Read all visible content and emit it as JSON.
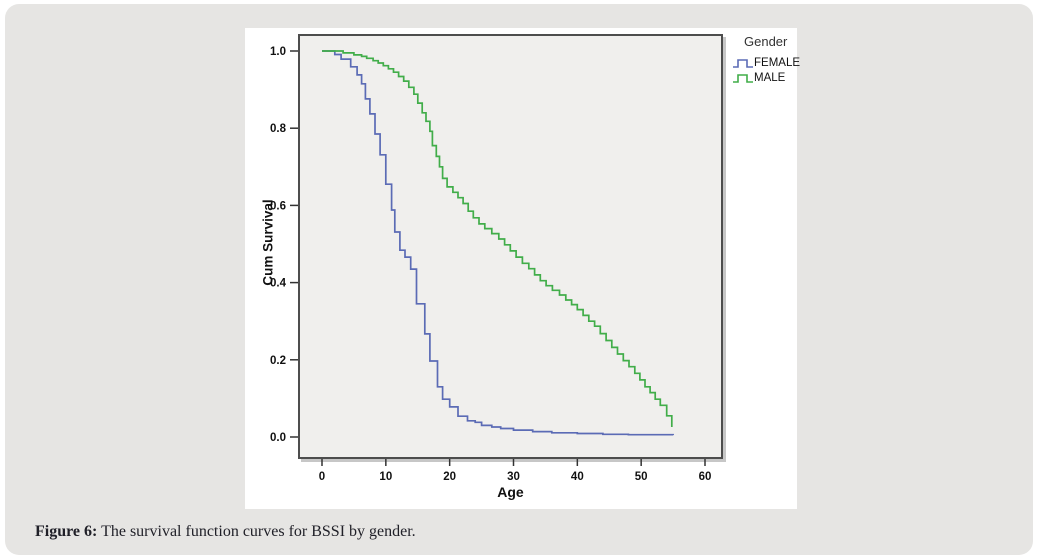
{
  "caption": {
    "prefix": "Figure 6:",
    "text": " The survival function curves for BSSI by gender."
  },
  "chart_data": {
    "type": "line",
    "subtype": "step-survival",
    "title": "",
    "xlabel": "Age",
    "ylabel": "Cum Survival",
    "xlim": [
      0,
      60
    ],
    "ylim": [
      0.0,
      1.0
    ],
    "grid": false,
    "plot_background": "#f0efed",
    "frame_color": "#4d4d4d",
    "x_tick_values": [
      0,
      10,
      20,
      30,
      40,
      50,
      60
    ],
    "x_tick_labels": [
      "0",
      "10",
      "20",
      "30",
      "40",
      "50",
      "60"
    ],
    "y_tick_values": [
      0.0,
      0.2,
      0.4,
      0.6,
      0.8,
      1.0
    ],
    "y_tick_labels": [
      "0.0",
      "0.2",
      "0.4",
      "0.6",
      "0.8",
      "1.0"
    ],
    "legend": {
      "title": "Gender",
      "position": "outside-top-right"
    },
    "series": [
      {
        "name": "FEMALE",
        "color": "#5b6bb5",
        "points": [
          [
            0,
            1.0
          ],
          [
            2,
            0.991
          ],
          [
            3,
            0.979
          ],
          [
            4.5,
            0.959
          ],
          [
            5.5,
            0.938
          ],
          [
            6.2,
            0.915
          ],
          [
            6.8,
            0.876
          ],
          [
            7.5,
            0.837
          ],
          [
            8.3,
            0.785
          ],
          [
            9.1,
            0.731
          ],
          [
            10,
            0.655
          ],
          [
            10.9,
            0.588
          ],
          [
            11.4,
            0.531
          ],
          [
            12.2,
            0.484
          ],
          [
            13,
            0.466
          ],
          [
            13.9,
            0.435
          ],
          [
            14.8,
            0.345
          ],
          [
            16.1,
            0.267
          ],
          [
            16.9,
            0.197
          ],
          [
            18.1,
            0.13
          ],
          [
            18.9,
            0.098
          ],
          [
            20,
            0.078
          ],
          [
            21.3,
            0.054
          ],
          [
            22.8,
            0.042
          ],
          [
            24,
            0.038
          ],
          [
            25,
            0.03
          ],
          [
            26.6,
            0.026
          ],
          [
            28,
            0.022
          ],
          [
            30,
            0.018
          ],
          [
            33,
            0.014
          ],
          [
            36,
            0.011
          ],
          [
            40,
            0.009
          ],
          [
            44,
            0.007
          ],
          [
            48,
            0.006
          ],
          [
            55,
            0.005
          ]
        ]
      },
      {
        "name": "MALE",
        "color": "#41ad49",
        "points": [
          [
            0,
            1.0
          ],
          [
            3.3,
            0.995
          ],
          [
            5,
            0.99
          ],
          [
            6.2,
            0.986
          ],
          [
            7,
            0.981
          ],
          [
            8,
            0.975
          ],
          [
            8.8,
            0.969
          ],
          [
            9.6,
            0.962
          ],
          [
            10.4,
            0.954
          ],
          [
            11.2,
            0.945
          ],
          [
            12,
            0.934
          ],
          [
            12.8,
            0.922
          ],
          [
            13.6,
            0.906
          ],
          [
            14.4,
            0.888
          ],
          [
            15,
            0.865
          ],
          [
            15.7,
            0.84
          ],
          [
            16.3,
            0.818
          ],
          [
            16.9,
            0.792
          ],
          [
            17.3,
            0.755
          ],
          [
            17.9,
            0.727
          ],
          [
            18.4,
            0.7
          ],
          [
            18.9,
            0.67
          ],
          [
            19.6,
            0.648
          ],
          [
            20.5,
            0.634
          ],
          [
            21.3,
            0.62
          ],
          [
            22.1,
            0.605
          ],
          [
            22.9,
            0.585
          ],
          [
            23.7,
            0.568
          ],
          [
            24.6,
            0.552
          ],
          [
            25.5,
            0.54
          ],
          [
            26.6,
            0.527
          ],
          [
            27.7,
            0.513
          ],
          [
            28.6,
            0.498
          ],
          [
            29.5,
            0.482
          ],
          [
            30.4,
            0.466
          ],
          [
            31.4,
            0.45
          ],
          [
            32.4,
            0.436
          ],
          [
            33.3,
            0.42
          ],
          [
            34.2,
            0.405
          ],
          [
            35.1,
            0.392
          ],
          [
            36.1,
            0.38
          ],
          [
            37.2,
            0.368
          ],
          [
            38.2,
            0.355
          ],
          [
            39.1,
            0.343
          ],
          [
            40,
            0.33
          ],
          [
            40.9,
            0.315
          ],
          [
            41.8,
            0.3
          ],
          [
            42.7,
            0.287
          ],
          [
            43.6,
            0.268
          ],
          [
            44.5,
            0.25
          ],
          [
            45.4,
            0.232
          ],
          [
            46.3,
            0.215
          ],
          [
            47.2,
            0.198
          ],
          [
            48.1,
            0.182
          ],
          [
            49,
            0.165
          ],
          [
            49.8,
            0.148
          ],
          [
            50.6,
            0.13
          ],
          [
            51.4,
            0.115
          ],
          [
            52.2,
            0.098
          ],
          [
            53,
            0.082
          ],
          [
            54,
            0.055
          ],
          [
            54.8,
            0.026
          ]
        ]
      }
    ]
  }
}
